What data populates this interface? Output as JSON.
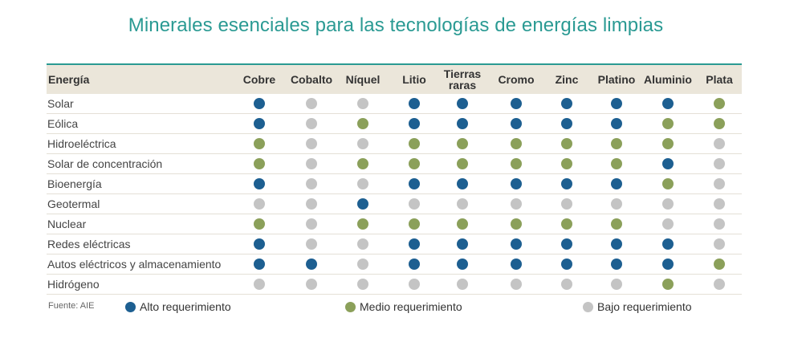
{
  "title": "Minerales esenciales para las tecnologías de energías limpias",
  "colors": {
    "alto": "#1d5f91",
    "medio": "#8ba05a",
    "bajo": "#c4c4c4",
    "accent": "#2a9a93",
    "header_bg": "#ebe6da"
  },
  "chart_data": {
    "type": "table",
    "row_header": "Energía",
    "columns": [
      "Cobre",
      "Cobalto",
      "Níquel",
      "Litio",
      "Tierras raras",
      "Cromo",
      "Zinc",
      "Platino",
      "Aluminio",
      "Plata"
    ],
    "levels": {
      "A": "Alto requerimiento",
      "M": "Medio requerimiento",
      "B": "Bajo requerimiento"
    },
    "rows": [
      {
        "label": "Solar",
        "values": [
          "A",
          "B",
          "B",
          "A",
          "A",
          "A",
          "A",
          "A",
          "A",
          "M"
        ]
      },
      {
        "label": "Eólica",
        "values": [
          "A",
          "B",
          "M",
          "A",
          "A",
          "A",
          "A",
          "A",
          "M",
          "M"
        ]
      },
      {
        "label": "Hidroeléctrica",
        "values": [
          "M",
          "B",
          "B",
          "M",
          "M",
          "M",
          "M",
          "M",
          "M",
          "B"
        ]
      },
      {
        "label": "Solar de concentración",
        "values": [
          "M",
          "B",
          "M",
          "M",
          "M",
          "M",
          "M",
          "M",
          "A",
          "B"
        ]
      },
      {
        "label": "Bioenergía",
        "values": [
          "A",
          "B",
          "B",
          "A",
          "A",
          "A",
          "A",
          "A",
          "M",
          "B"
        ]
      },
      {
        "label": "Geotermal",
        "values": [
          "B",
          "B",
          "A",
          "B",
          "B",
          "B",
          "B",
          "B",
          "B",
          "B"
        ]
      },
      {
        "label": "Nuclear",
        "values": [
          "M",
          "B",
          "M",
          "M",
          "M",
          "M",
          "M",
          "M",
          "B",
          "B"
        ]
      },
      {
        "label": "Redes eléctricas",
        "values": [
          "A",
          "B",
          "B",
          "A",
          "A",
          "A",
          "A",
          "A",
          "A",
          "B"
        ]
      },
      {
        "label": "Autos eléctricos y almacenamiento",
        "values": [
          "A",
          "A",
          "B",
          "A",
          "A",
          "A",
          "A",
          "A",
          "A",
          "M"
        ]
      },
      {
        "label": "Hidrógeno",
        "values": [
          "B",
          "B",
          "B",
          "B",
          "B",
          "B",
          "B",
          "B",
          "M",
          "B"
        ]
      }
    ]
  },
  "legend": {
    "source": "Fuente: AIE",
    "alto": "Alto requerimiento",
    "medio": "Medio requerimiento",
    "bajo": "Bajo requerimiento"
  }
}
